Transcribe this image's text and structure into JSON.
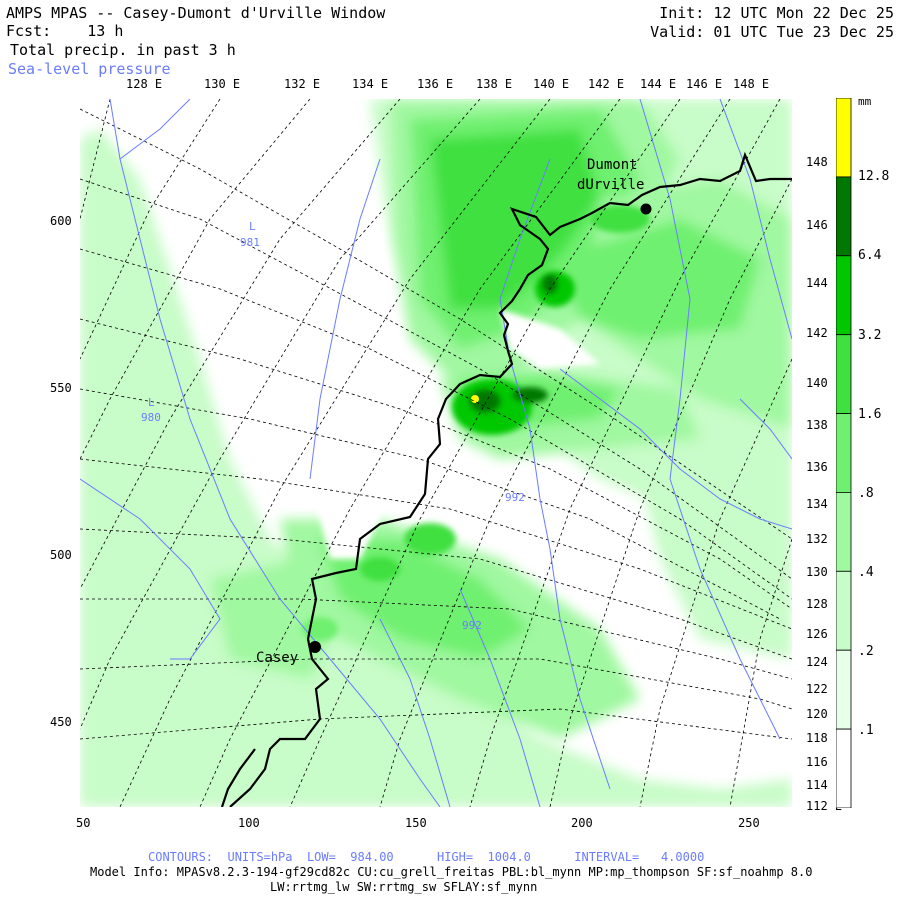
{
  "header": {
    "title": "AMPS MPAS -- Casey-Dumont d'Urville Window",
    "fcst_label": "Fcst:",
    "fcst_value": "13 h",
    "field": "Total precip. in past 3 h",
    "overlay": "Sea-level pressure",
    "init": "Init: 12 UTC Mon 22 Dec 25",
    "valid": "Valid: 01 UTC Tue 23 Dec 25"
  },
  "top_ticks": [
    "128 E",
    "130 E",
    "132 E",
    "134 E",
    "136 E",
    "138 E",
    "140 E",
    "142 E",
    "144 E",
    "146 E",
    "148 E"
  ],
  "right_ticks": [
    "148 E",
    "146 E",
    "144 E",
    "142 E",
    "140 E",
    "138 E",
    "136 E",
    "134 E",
    "132 E",
    "130 E",
    "128 E",
    "126 E",
    "124 E",
    "122 E",
    "120 E",
    "118 E",
    "116 E",
    "114 E",
    "112 E"
  ],
  "left_ticks": [
    "600",
    "550",
    "500",
    "450"
  ],
  "bottom_ticks": [
    "50",
    "100",
    "150",
    "200",
    "250"
  ],
  "colorbar": {
    "unit": "mm",
    "levels": [
      "12.8",
      "6.4",
      "3.2",
      "1.6",
      ".8",
      ".4",
      ".2",
      ".1"
    ],
    "colors": [
      "#ffff00",
      "#007800",
      "#00c800",
      "#40e040",
      "#70f070",
      "#a0f8a0",
      "#c8fcc8",
      "#e8ffe8",
      "#ffffff"
    ]
  },
  "stations": {
    "dumont_line1": "Dumont",
    "dumont_line2": "dUrville",
    "casey": "Casey"
  },
  "pressure_labels": {
    "low1_letter": "L",
    "low1_value": "981",
    "low2_letter": "L",
    "low2_value": "980",
    "iso1": "992",
    "iso2": "992"
  },
  "footer": {
    "contours": "CONTOURS:  UNITS=hPa  LOW=  984.00      HIGH=  1004.0      INTERVAL=   4.0000",
    "model_info": "Model Info: MPASv8.2.3-194-gf29cd82c CU:cu_grell_freitas PBL:bl_mynn MP:mp_thompson SF:sf_noahmp 8.0",
    "model_info2": "LW:rrtmg_lw SW:rrtmg_sw SFLAY:sf_mynn"
  },
  "style_colors": {
    "overlay_blue": "#6b7cff",
    "coast": "#000000"
  }
}
